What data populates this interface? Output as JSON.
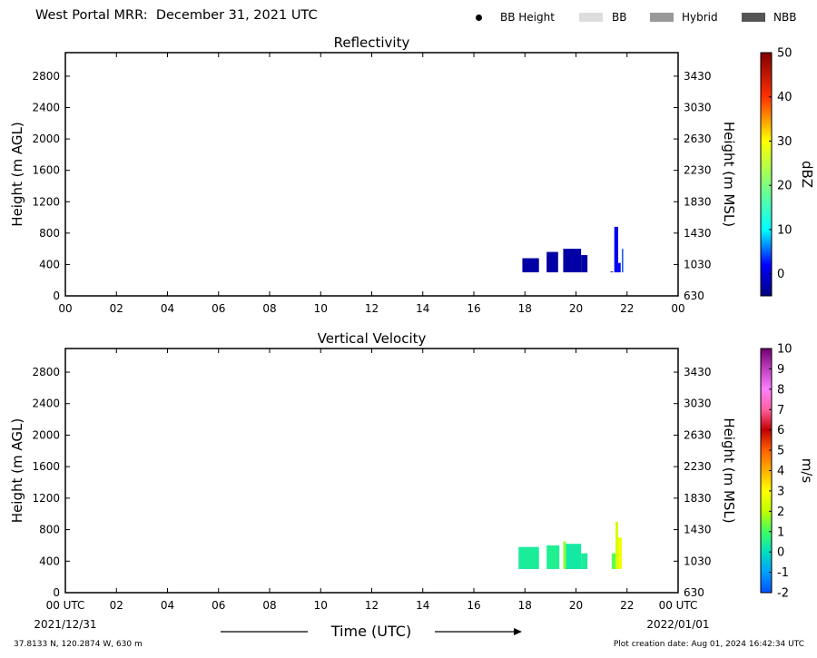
{
  "header": {
    "title": "West Portal MRR:  December 31, 2021 UTC",
    "legend": [
      {
        "label": "BB Height",
        "kind": "dot",
        "color": "#000000"
      },
      {
        "label": "BB",
        "kind": "swatch",
        "color": "#dddddd"
      },
      {
        "label": "Hybrid",
        "kind": "swatch",
        "color": "#999999"
      },
      {
        "label": "NBB",
        "kind": "swatch",
        "color": "#555555"
      }
    ]
  },
  "chart_data": [
    {
      "type": "heatmap",
      "title": "Reflectivity",
      "ylabel": "Height (m AGL)",
      "y2label": "Height (m MSL)",
      "x_ticks": [
        "00",
        "02",
        "04",
        "06",
        "08",
        "10",
        "12",
        "14",
        "16",
        "18",
        "20",
        "22",
        "00"
      ],
      "xlim": [
        0,
        24
      ],
      "ylim": [
        0,
        3100
      ],
      "y_ticks": [
        0,
        400,
        800,
        1200,
        1600,
        2000,
        2400,
        2800
      ],
      "y2_ticks": [
        630,
        1030,
        1430,
        1830,
        2230,
        2630,
        3030,
        3430
      ],
      "colorbar": {
        "label": "dBZ",
        "range": [
          -5,
          50
        ],
        "ticks": [
          0,
          10,
          20,
          30,
          40,
          50
        ],
        "stops": [
          {
            "v": -5,
            "c": "#000080"
          },
          {
            "v": 2,
            "c": "#0000ff"
          },
          {
            "v": 10,
            "c": "#00ffff"
          },
          {
            "v": 20,
            "c": "#7fff7f"
          },
          {
            "v": 30,
            "c": "#ffff00"
          },
          {
            "v": 40,
            "c": "#ff3000"
          },
          {
            "v": 50,
            "c": "#800000"
          }
        ]
      },
      "echoes": [
        {
          "t0": 17.9,
          "t1": 18.55,
          "base": 300,
          "top": 480,
          "value": -3
        },
        {
          "t0": 18.85,
          "t1": 19.3,
          "base": 300,
          "top": 560,
          "value": -3
        },
        {
          "t0": 19.5,
          "t1": 20.2,
          "base": 300,
          "top": 600,
          "value": -3
        },
        {
          "t0": 20.2,
          "t1": 20.45,
          "base": 300,
          "top": 520,
          "value": -3
        },
        {
          "t0": 21.35,
          "t1": 21.45,
          "base": 300,
          "top": 310,
          "value": -3
        },
        {
          "t0": 21.5,
          "t1": 21.65,
          "base": 300,
          "top": 880,
          "value": 1
        },
        {
          "t0": 21.65,
          "t1": 21.75,
          "base": 300,
          "top": 420,
          "value": 2
        },
        {
          "t0": 21.8,
          "t1": 21.85,
          "base": 300,
          "top": 600,
          "value": 4
        }
      ]
    },
    {
      "type": "heatmap",
      "title": "Vertical Velocity",
      "ylabel": "Height (m AGL)",
      "y2label": "Height (m MSL)",
      "xlabel": "Time (UTC)",
      "x_ticks": [
        "00 UTC",
        "02",
        "04",
        "06",
        "08",
        "10",
        "12",
        "14",
        "16",
        "18",
        "20",
        "22",
        "00 UTC"
      ],
      "x_start_date": "2021/12/31",
      "x_end_date": "2022/01/01",
      "xlim": [
        0,
        24
      ],
      "ylim": [
        0,
        3100
      ],
      "y_ticks": [
        0,
        400,
        800,
        1200,
        1600,
        2000,
        2400,
        2800
      ],
      "y2_ticks": [
        630,
        1030,
        1430,
        1830,
        2230,
        2630,
        3030,
        3430
      ],
      "colorbar": {
        "label": "m/s",
        "range": [
          -2,
          10
        ],
        "ticks": [
          -2,
          -1,
          0,
          1,
          2,
          3,
          4,
          5,
          6,
          7,
          8,
          9,
          10
        ],
        "stops": [
          {
            "v": -2,
            "c": "#0050ff"
          },
          {
            "v": -1,
            "c": "#00a0ff"
          },
          {
            "v": 0,
            "c": "#00e0c0"
          },
          {
            "v": 1,
            "c": "#40ff60"
          },
          {
            "v": 2,
            "c": "#c0ff00"
          },
          {
            "v": 3,
            "c": "#ffff00"
          },
          {
            "v": 4,
            "c": "#ffb000"
          },
          {
            "v": 5,
            "c": "#ff6000"
          },
          {
            "v": 6,
            "c": "#c00000"
          },
          {
            "v": 7,
            "c": "#ff60a0"
          },
          {
            "v": 8,
            "c": "#ff80ff"
          },
          {
            "v": 9,
            "c": "#c040c0"
          },
          {
            "v": 10,
            "c": "#700070"
          }
        ]
      },
      "echoes": [
        {
          "t0": 17.75,
          "t1": 18.55,
          "base": 300,
          "top": 580,
          "value": 0.4
        },
        {
          "t0": 18.85,
          "t1": 19.35,
          "base": 300,
          "top": 600,
          "value": 0.5
        },
        {
          "t0": 19.5,
          "t1": 19.6,
          "base": 300,
          "top": 650,
          "value": 1.6
        },
        {
          "t0": 19.6,
          "t1": 20.2,
          "base": 300,
          "top": 620,
          "value": 0.3
        },
        {
          "t0": 20.2,
          "t1": 20.45,
          "base": 300,
          "top": 500,
          "value": 0.4
        },
        {
          "t0": 21.4,
          "t1": 21.55,
          "base": 300,
          "top": 500,
          "value": 1.2
        },
        {
          "t0": 21.55,
          "t1": 21.65,
          "base": 300,
          "top": 900,
          "value": 2.3
        },
        {
          "t0": 21.65,
          "t1": 21.8,
          "base": 300,
          "top": 700,
          "value": 2.8
        }
      ]
    }
  ],
  "footer": {
    "location": "37.8133 N, 120.2874 W, 630 m",
    "created": "Plot creation date: Aug 01, 2024 16:42:34 UTC"
  }
}
